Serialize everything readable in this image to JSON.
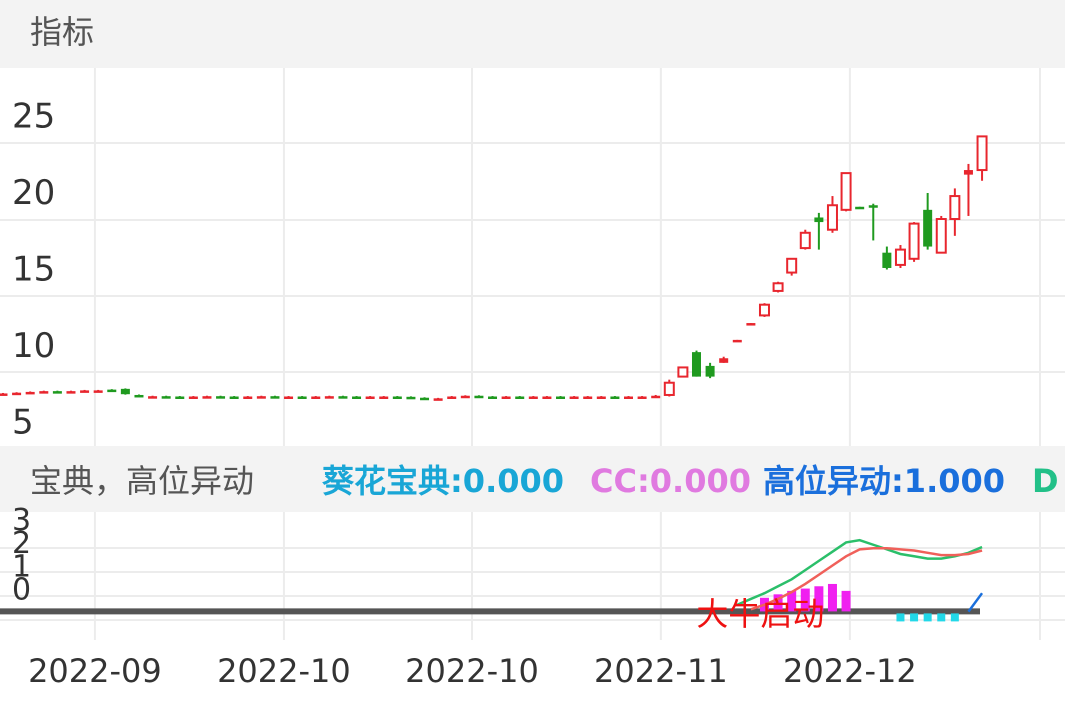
{
  "header": {
    "title": "指标"
  },
  "chart_data": [
    {
      "type": "candlestick",
      "open": [
        6.95,
        7.0,
        7.05,
        7.1,
        7.15,
        7.1,
        7.15,
        7.2,
        7.25,
        7.3,
        6.9,
        6.8,
        6.82,
        6.8,
        6.78,
        6.8,
        6.82,
        6.8,
        6.78,
        6.8,
        6.82,
        6.8,
        6.8,
        6.78,
        6.8,
        6.82,
        6.8,
        6.78,
        6.8,
        6.8,
        6.78,
        6.72,
        6.66,
        6.68,
        6.8,
        6.85,
        6.8,
        6.78,
        6.8,
        6.78,
        6.8,
        6.8,
        6.78,
        6.8,
        6.8,
        6.8,
        6.78,
        6.8,
        6.8,
        6.9,
        8.1,
        9.7,
        8.8,
        9.0,
        10.4,
        11.5,
        12.1,
        13.7,
        14.9,
        16.5,
        18.5,
        17.7,
        19.0,
        19.2,
        19.3,
        16.2,
        15.4,
        15.8,
        19.0,
        16.2,
        18.4,
        21.3,
        21.6
      ],
      "high": [
        7.03,
        7.08,
        7.13,
        7.18,
        7.18,
        7.18,
        7.23,
        7.23,
        7.28,
        7.33,
        6.93,
        6.85,
        6.85,
        6.83,
        6.83,
        6.85,
        6.85,
        6.83,
        6.83,
        6.85,
        6.85,
        6.83,
        6.83,
        6.83,
        6.85,
        6.85,
        6.83,
        6.83,
        6.83,
        6.83,
        6.81,
        6.75,
        6.71,
        6.83,
        6.88,
        6.88,
        6.83,
        6.83,
        6.83,
        6.83,
        6.83,
        6.83,
        6.83,
        6.83,
        6.83,
        6.83,
        6.83,
        6.83,
        6.9,
        7.9,
        8.7,
        9.8,
        9.0,
        9.4,
        10.5,
        11.6,
        12.9,
        14.3,
        15.8,
        17.7,
        18.8,
        19.9,
        21.4,
        19.2,
        19.4,
        16.6,
        16.7,
        18.2,
        20.1,
        18.6,
        20.4,
        22.0,
        23.8
      ],
      "low": [
        6.92,
        6.97,
        7.02,
        7.07,
        7.07,
        7.07,
        7.12,
        7.17,
        7.12,
        6.92,
        6.77,
        6.77,
        6.77,
        6.75,
        6.75,
        6.77,
        6.77,
        6.75,
        6.75,
        6.77,
        6.77,
        6.77,
        6.75,
        6.75,
        6.77,
        6.77,
        6.75,
        6.75,
        6.77,
        6.75,
        6.69,
        6.63,
        6.63,
        6.65,
        6.77,
        6.77,
        6.75,
        6.75,
        6.75,
        6.75,
        6.77,
        6.75,
        6.75,
        6.77,
        6.77,
        6.75,
        6.75,
        6.77,
        6.75,
        6.8,
        8.1,
        8.1,
        8.0,
        9.0,
        10.4,
        11.5,
        12.0,
        13.6,
        14.7,
        16.4,
        16.4,
        17.5,
        18.9,
        19.1,
        17.0,
        15.1,
        15.2,
        15.6,
        16.4,
        16.2,
        17.3,
        18.6,
        20.9
      ],
      "close": [
        7.0,
        7.05,
        7.1,
        7.15,
        7.1,
        7.15,
        7.2,
        7.2,
        7.15,
        6.95,
        6.8,
        6.82,
        6.8,
        6.78,
        6.8,
        6.82,
        6.8,
        6.78,
        6.8,
        6.82,
        6.8,
        6.8,
        6.78,
        6.8,
        6.82,
        6.8,
        6.78,
        6.8,
        6.8,
        6.78,
        6.72,
        6.66,
        6.68,
        6.8,
        6.85,
        6.8,
        6.78,
        6.8,
        6.78,
        6.8,
        6.8,
        6.78,
        6.8,
        6.8,
        6.8,
        6.78,
        6.8,
        6.8,
        6.85,
        7.7,
        8.7,
        8.1,
        8.1,
        9.3,
        10.5,
        11.6,
        12.8,
        14.2,
        15.8,
        17.5,
        18.2,
        19.3,
        21.4,
        19.1,
        19.2,
        15.2,
        16.4,
        18.1,
        16.6,
        18.4,
        19.9,
        21.6,
        23.8
      ],
      "up_color": "#e8262e",
      "down_color": "#1f9a1f",
      "xlim": [
        -0.22,
        78.1
      ],
      "ylim": [
        3.63,
        28.27
      ],
      "yticks": [
        5,
        10,
        15,
        20,
        25
      ]
    },
    {
      "type": "line",
      "title": "宝典，高位异动",
      "legend": [
        {
          "text": "葵花宝典:0.000",
          "color": "#19a6d6"
        },
        {
          "text": "CC:0.000",
          "color": "#e07ae0"
        },
        {
          "text": "高位异动:1.000",
          "color": "#1a6fdc"
        },
        {
          "text": "D",
          "color": "#22c088"
        }
      ],
      "xlim": [
        -0.22,
        78.1
      ],
      "xticks": [
        {
          "value": 6.76,
          "label": "2022-09"
        },
        {
          "value": 20.66,
          "label": "2022-10"
        },
        {
          "value": 34.49,
          "label": "2022-10"
        },
        {
          "value": 48.38,
          "label": "2022-11"
        },
        {
          "value": 62.28,
          "label": "2022-12"
        }
      ],
      "ylim": [
        -2.13,
        3.42
      ],
      "yticks": [
        0,
        1,
        2,
        3
      ],
      "hline": -0.89,
      "hline_color": "#555555",
      "series": [
        {
          "color": "#2bbf6a",
          "x": [
            54,
            55,
            56,
            57,
            58,
            59,
            60,
            61,
            62,
            63,
            64,
            65,
            66,
            67,
            68,
            69,
            70,
            71,
            72
          ],
          "values": [
            -0.6,
            -0.35,
            -0.1,
            0.2,
            0.5,
            0.9,
            1.3,
            1.7,
            2.1,
            2.2,
            2.0,
            1.8,
            1.6,
            1.5,
            1.4,
            1.4,
            1.5,
            1.65,
            1.9
          ]
        },
        {
          "color": "#f0605a",
          "x": [
            55,
            56,
            57,
            58,
            59,
            60,
            61,
            62,
            63,
            64,
            65,
            66,
            67,
            68,
            69,
            70,
            71,
            72
          ],
          "values": [
            -0.8,
            -0.6,
            -0.35,
            -0.05,
            0.3,
            0.7,
            1.1,
            1.5,
            1.8,
            1.85,
            1.85,
            1.8,
            1.75,
            1.65,
            1.55,
            1.55,
            1.6,
            1.75
          ]
        },
        {
          "color": "#1a6fdc",
          "x": [
            71,
            72
          ],
          "values": [
            -0.9,
            -0.1
          ]
        }
      ],
      "bars": {
        "color": "#f020f0",
        "x": [
          56,
          57,
          58,
          59,
          60,
          61,
          62
        ],
        "values": [
          -0.3,
          -0.15,
          0.0,
          0.1,
          0.2,
          0.3,
          0.0
        ]
      },
      "squares": {
        "color": "#22d8e8",
        "x": [
          66,
          67,
          68,
          69,
          70
        ],
        "values": [
          -1.15,
          -1.15,
          -1.15,
          -1.15,
          -1.15
        ]
      },
      "annotations": [
        {
          "text": "大牛启动",
          "x": 55.7,
          "y": -1.1,
          "color": "#ee1111"
        }
      ]
    }
  ]
}
